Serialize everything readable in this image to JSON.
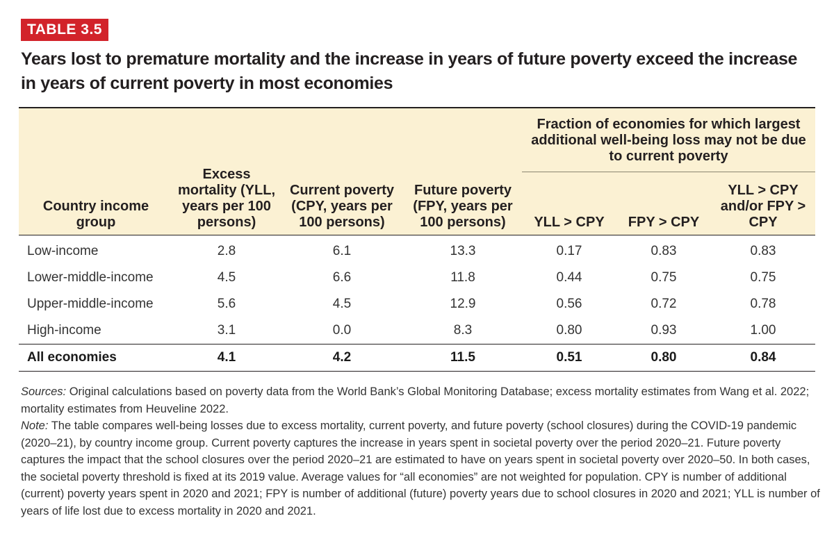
{
  "badge": "TABLE 3.5",
  "title": "Years lost to premature mortality and the increase in years of future poverty exceed the increase in years of current poverty in most economies",
  "table": {
    "group_header": "Fraction of economies for which largest additional well-being loss may not be due to current poverty",
    "columns": [
      "Country income group",
      "Excess mortality (YLL, years per 100 persons)",
      "Current poverty (CPY, years per 100 persons)",
      "Future poverty (FPY, years per 100 persons)",
      "YLL > CPY",
      "FPY > CPY",
      "YLL > CPY and/or FPY > CPY"
    ],
    "rows": [
      [
        "Low-income",
        "2.8",
        "6.1",
        "13.3",
        "0.17",
        "0.83",
        "0.83"
      ],
      [
        "Lower-middle-income",
        "4.5",
        "6.6",
        "11.8",
        "0.44",
        "0.75",
        "0.75"
      ],
      [
        "Upper-middle-income",
        "5.6",
        "4.5",
        "12.9",
        "0.56",
        "0.72",
        "0.78"
      ],
      [
        "High-income",
        "3.1",
        "0.0",
        "8.3",
        "0.80",
        "0.93",
        "1.00"
      ]
    ],
    "total": [
      "All economies",
      "4.1",
      "4.2",
      "11.5",
      "0.51",
      "0.80",
      "0.84"
    ]
  },
  "notes": {
    "sources_label": "Sources:",
    "sources_text": " Original calculations based on poverty data from the World Bank’s Global Monitoring Database; excess mortality estimates from Wang et al. 2022; mortality estimates from Heuveline 2022.",
    "note_label": "Note:",
    "note_text": " The table compares well-being losses due to excess mortality, current poverty, and future poverty (school closures) during the COVID-19 pandemic (2020–21), by country income group. Current poverty captures the increase in years spent in societal poverty over the period 2020–21. Future poverty captures the impact that the school closures over the period 2020–21 are estimated to have on years spent in societal poverty over 2020–50. In both cases, the societal poverty threshold is fixed at its 2019 value. Average values for “all economies” are not weighted for population. CPY is number of additional (current) poverty years spent in 2020 and 2021; FPY is number of additional (future) poverty years due to school closures in 2020 and 2021; YLL is number of years of life lost due to excess mortality in 2020 and 2021."
  }
}
